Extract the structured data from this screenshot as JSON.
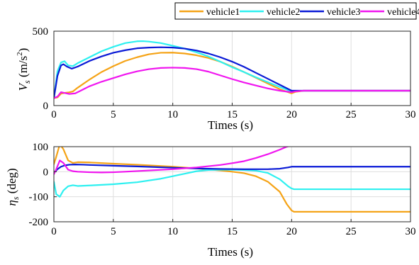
{
  "chart_data": [
    {
      "type": "line",
      "ylabel": "V_s (m/s²)",
      "ylabel_parts": {
        "symbol": "V",
        "sub": "s",
        "unit_open": " (m/s",
        "unit_sup": "2",
        "unit_close": ")"
      },
      "xlabel": "Times (s)",
      "xlim": [
        0,
        30
      ],
      "ylim": [
        0,
        500
      ],
      "xticks": [
        "0",
        "5",
        "10",
        "15",
        "20",
        "25",
        "30"
      ],
      "yticks": [
        {
          "value": 0,
          "label": "0"
        },
        {
          "value": 500,
          "label": "500"
        }
      ],
      "grid": true,
      "legend": "top",
      "series": [
        {
          "name": "vehicle1",
          "color": "#f5a316",
          "x": [
            0,
            0.3,
            0.6,
            0.9,
            1.2,
            1.6,
            2,
            3,
            4,
            5,
            6,
            7,
            8,
            9,
            10,
            11,
            12,
            13,
            14,
            15,
            16,
            17,
            18,
            19,
            20,
            20.3,
            21,
            25,
            30
          ],
          "y": [
            50,
            55,
            80,
            85,
            88,
            95,
            120,
            175,
            225,
            265,
            300,
            325,
            345,
            355,
            356,
            350,
            338,
            320,
            295,
            262,
            225,
            187,
            148,
            110,
            82,
            92,
            100,
            100,
            100
          ]
        },
        {
          "name": "vehicle2",
          "color": "#2ef0f0",
          "x": [
            0,
            0.3,
            0.6,
            0.9,
            1.2,
            1.6,
            2,
            3,
            4,
            5,
            6,
            7,
            7.5,
            8,
            9,
            10,
            11,
            12,
            13,
            14,
            15,
            16,
            17,
            18,
            19,
            20,
            20.3,
            21,
            25,
            30
          ],
          "y": [
            50,
            230,
            290,
            298,
            270,
            265,
            285,
            325,
            365,
            395,
            420,
            432,
            433,
            430,
            420,
            402,
            383,
            358,
            330,
            295,
            258,
            225,
            190,
            157,
            125,
            95,
            97,
            100,
            100,
            100
          ]
        },
        {
          "name": "vehicle3",
          "color": "#0a1ad6",
          "x": [
            0,
            0.3,
            0.6,
            0.8,
            1.1,
            1.5,
            2,
            3,
            4,
            5,
            6,
            7,
            8,
            9,
            10,
            11,
            12,
            13,
            14,
            15,
            16,
            17,
            18,
            19,
            20,
            20.3,
            21,
            25,
            30
          ],
          "y": [
            50,
            200,
            270,
            278,
            262,
            248,
            262,
            300,
            330,
            355,
            372,
            385,
            390,
            392,
            390,
            383,
            370,
            350,
            325,
            295,
            260,
            220,
            180,
            140,
            100,
            100,
            100,
            100,
            100
          ]
        },
        {
          "name": "vehicle4",
          "color": "#f015ef",
          "x": [
            0,
            0.3,
            0.6,
            0.9,
            1.3,
            1.8,
            2.5,
            3,
            4,
            5,
            6,
            7,
            8,
            9,
            10,
            11,
            12,
            13,
            14,
            15,
            16,
            17,
            18,
            19,
            20,
            20.3,
            21,
            25,
            30
          ],
          "y": [
            50,
            60,
            90,
            85,
            78,
            82,
            110,
            130,
            160,
            185,
            210,
            230,
            245,
            253,
            255,
            253,
            245,
            228,
            203,
            178,
            155,
            135,
            115,
            100,
            90,
            95,
            100,
            100,
            100
          ]
        }
      ]
    },
    {
      "type": "line",
      "ylabel": "η_s (deg)",
      "ylabel_parts": {
        "symbol": "η",
        "sub": "s",
        "unit": " (deg)"
      },
      "xlabel": "Times (s)",
      "xlim": [
        0,
        30
      ],
      "ylim": [
        -200,
        100
      ],
      "xticks": [
        "0",
        "5",
        "10",
        "15",
        "20",
        "25",
        "30"
      ],
      "yticks": [
        {
          "value": 100,
          "label": "100"
        },
        {
          "value": 0,
          "label": "0"
        },
        {
          "value": -100,
          "label": "-100"
        },
        {
          "value": -200,
          "label": "-200"
        }
      ],
      "grid": true,
      "series": [
        {
          "name": "vehicle1",
          "color": "#f5a316",
          "x": [
            0,
            0.2,
            0.5,
            0.8,
            1.2,
            1.6,
            2,
            3,
            5,
            7,
            10,
            12,
            14,
            15,
            16,
            17,
            18,
            19,
            19.6,
            20,
            20.2,
            21,
            25,
            30
          ],
          "y": [
            30,
            60,
            110,
            90,
            45,
            35,
            38,
            37,
            32,
            28,
            20,
            13,
            5,
            0,
            -6,
            -18,
            -40,
            -80,
            -130,
            -155,
            -160,
            -160,
            -160,
            -160
          ]
        },
        {
          "name": "vehicle2",
          "color": "#2ef0f0",
          "x": [
            0,
            0.2,
            0.5,
            0.8,
            1.2,
            1.6,
            2,
            3,
            5,
            7,
            9,
            10,
            11,
            12,
            13,
            14,
            15,
            16,
            17,
            18,
            19,
            19.7,
            20,
            20.2,
            21,
            25,
            30
          ],
          "y": [
            -40,
            -90,
            -100,
            -75,
            -58,
            -54,
            -57,
            -55,
            -50,
            -42,
            -28,
            -18,
            -8,
            2,
            7,
            8,
            8,
            7,
            4,
            -5,
            -30,
            -58,
            -67,
            -70,
            -70,
            -70,
            -70
          ]
        },
        {
          "name": "vehicle3",
          "color": "#0a1ad6",
          "x": [
            0,
            0.3,
            0.6,
            0.9,
            1.3,
            1.8,
            2.5,
            3,
            5,
            7,
            10,
            12,
            14,
            16,
            18,
            19,
            19.7,
            20,
            20.2,
            21,
            25,
            30
          ],
          "y": [
            -5,
            10,
            20,
            25,
            28,
            29,
            28,
            27,
            24,
            21,
            16,
            13,
            11,
            10,
            10,
            12,
            17,
            20,
            20,
            20,
            20,
            20
          ]
        },
        {
          "name": "vehicle4",
          "color": "#f015ef",
          "x": [
            0,
            0.2,
            0.5,
            0.8,
            1.2,
            1.6,
            2,
            3,
            4,
            5,
            6,
            8,
            10,
            12,
            14,
            15,
            16,
            17,
            18,
            19,
            19.6,
            20,
            20.2,
            21,
            25,
            30
          ],
          "y": [
            -10,
            10,
            45,
            35,
            8,
            2,
            0,
            -2,
            -3,
            -2,
            0,
            5,
            10,
            17,
            27,
            34,
            42,
            55,
            70,
            88,
            100,
            105,
            108,
            110,
            110,
            110
          ]
        }
      ]
    }
  ],
  "legend": {
    "items": [
      {
        "name": "vehicle1",
        "color": "#f5a316"
      },
      {
        "name": "vehicle2",
        "color": "#2ef0f0"
      },
      {
        "name": "vehicle3",
        "color": "#0a1ad6"
      },
      {
        "name": "vehicle4",
        "color": "#f015ef"
      }
    ]
  }
}
